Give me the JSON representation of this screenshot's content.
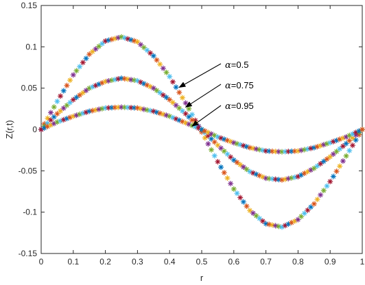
{
  "chart_data": {
    "type": "line",
    "title": "",
    "xlabel": "r",
    "ylabel": "Z(r,t)",
    "xlim": [
      0,
      1
    ],
    "ylim": [
      -0.15,
      0.15
    ],
    "grid": false,
    "legend": "none",
    "x_ticks": [
      "0",
      "0.1",
      "0.2",
      "0.3",
      "0.4",
      "0.5",
      "0.6",
      "0.7",
      "0.8",
      "0.9",
      "1"
    ],
    "y_ticks": [
      "-0.15",
      "-0.1",
      "-0.05",
      "0",
      "0.05",
      "0.1",
      "0.15"
    ],
    "marker": "asterisk",
    "marker_colors": [
      "#0072BD",
      "#D95319",
      "#EDB120",
      "#7E2F8E",
      "#77AC30",
      "#4DBEEE",
      "#A2142F"
    ],
    "x": [
      0,
      0.05,
      0.1,
      0.15,
      0.2,
      0.25,
      0.3,
      0.35,
      0.4,
      0.45,
      0.5,
      0.55,
      0.6,
      0.65,
      0.7,
      0.75,
      0.8,
      0.85,
      0.9,
      0.95,
      1
    ],
    "series": [
      {
        "values": [
          0,
          0.034,
          0.066,
          0.091,
          0.107,
          0.112,
          0.106,
          0.089,
          0.064,
          0.032,
          -0.003,
          -0.039,
          -0.072,
          -0.098,
          -0.114,
          -0.118,
          -0.109,
          -0.09,
          -0.063,
          -0.032,
          0
        ]
      },
      {
        "values": [
          0,
          0.019,
          0.036,
          0.05,
          0.058,
          0.062,
          0.059,
          0.05,
          0.036,
          0.019,
          0.0,
          -0.019,
          -0.037,
          -0.051,
          -0.059,
          -0.061,
          -0.057,
          -0.047,
          -0.033,
          -0.017,
          0
        ]
      },
      {
        "values": [
          0,
          0.009,
          0.016,
          0.022,
          0.026,
          0.027,
          0.026,
          0.022,
          0.016,
          0.008,
          0.0,
          -0.009,
          -0.016,
          -0.022,
          -0.026,
          -0.027,
          -0.026,
          -0.022,
          -0.016,
          -0.009,
          0
        ]
      }
    ],
    "annotations": [
      {
        "label": "α=0.5",
        "text": "=0.5",
        "greek": "α",
        "arrow_to": [
          0.43,
          0.051
        ]
      },
      {
        "label": "α=0.75",
        "text": "=0.75",
        "greek": "α",
        "arrow_to": [
          0.45,
          0.027
        ]
      },
      {
        "label": "α=0.95",
        "text": "=0.95",
        "greek": "α",
        "arrow_to": [
          0.47,
          0.004
        ]
      }
    ]
  }
}
